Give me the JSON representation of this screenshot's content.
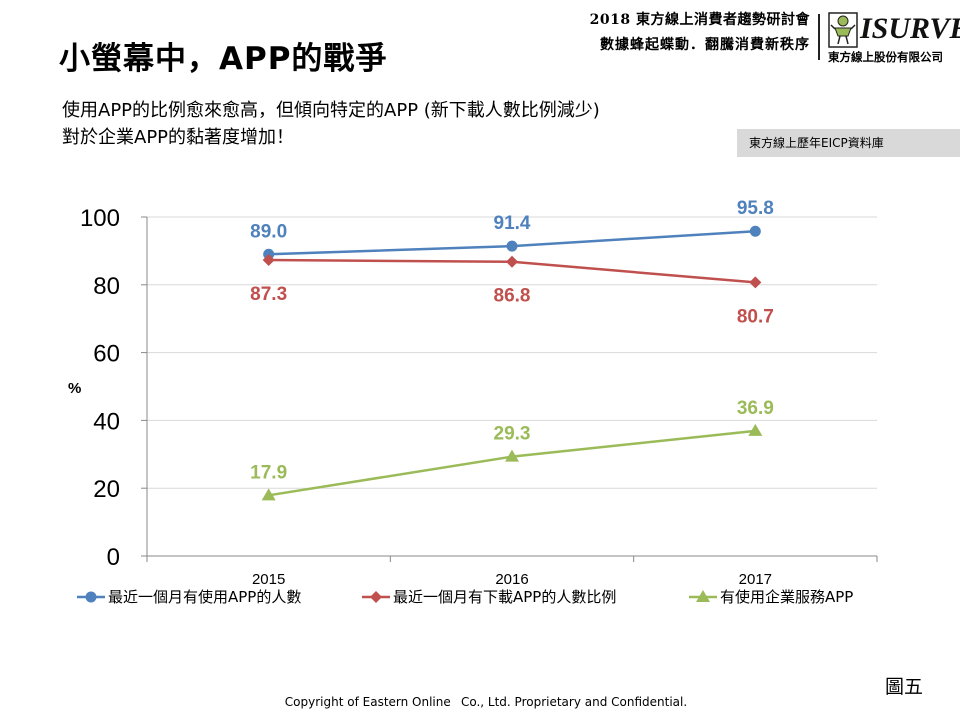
{
  "slide": {
    "title": "小螢幕中，APP的戰爭",
    "event_line1": "2018 東方線上消費者趨勢研討會",
    "event_line2": "數據蜂起蝶動．翻騰消費新秩序",
    "logo_text": "ISURVEY",
    "logo_company": "東方線上股份有限公司",
    "subtitle_line1": "使用APP的比例愈來愈高，但傾向特定的APP (新下載人數比例減少)",
    "subtitle_line2": "對於企業APP的黏著度增加！",
    "source": "東方線上歷年EICP資料庫",
    "figure_number": "圖五",
    "copyright_part1": "Copyright of Eastern Online",
    "copyright_part2": "Co., Ltd. Proprietary and Confidential.",
    "colors": {
      "text": "#000000",
      "source_box": "#d9d9d9",
      "gridline": "#d9d9d9",
      "axis": "#898989"
    }
  },
  "chart_data": {
    "type": "line",
    "categories": [
      "2015",
      "2016",
      "2017"
    ],
    "ylabel": "%",
    "ylim": [
      0,
      100
    ],
    "yticks": [
      0,
      20,
      40,
      60,
      80,
      100
    ],
    "grid": true,
    "legend_position": "bottom",
    "series": [
      {
        "name": "最近一個月有使用APP的人數",
        "values": [
          89.0,
          91.4,
          95.8
        ],
        "labels": [
          "89.0",
          "91.4",
          "95.8"
        ],
        "color": "#4f81bd",
        "marker": "circle",
        "label_position": "above"
      },
      {
        "name": "最近一個月有下載APP的人數比例",
        "values": [
          87.3,
          86.8,
          80.7
        ],
        "labels": [
          "87.3",
          "86.8",
          "80.7"
        ],
        "color": "#c0504d",
        "marker": "diamond",
        "label_position": "below"
      },
      {
        "name": "有使用企業服務APP",
        "values": [
          17.9,
          29.3,
          36.9
        ],
        "labels": [
          "17.9",
          "29.3",
          "36.9"
        ],
        "color": "#9bbb59",
        "marker": "triangle",
        "label_position": "above"
      }
    ]
  }
}
